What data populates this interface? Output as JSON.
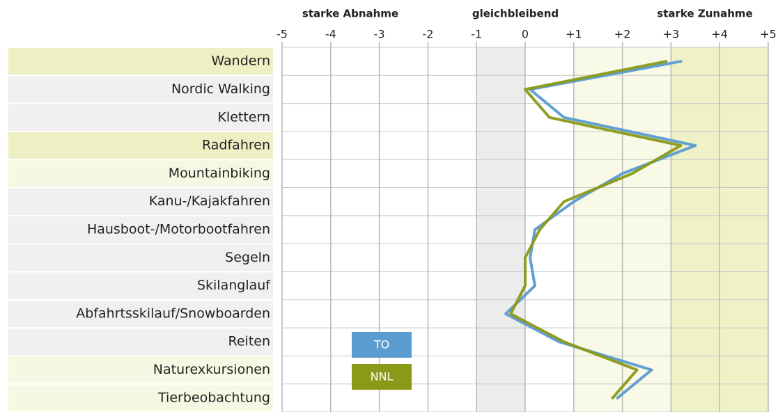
{
  "chart_data": {
    "type": "line",
    "annotations": [
      "starke Abnahme",
      "gleichbleibend",
      "starke Zunahme"
    ],
    "categories": [
      "Wandern",
      "Nordic Walking",
      "Klettern",
      "Radfahren",
      "Mountainbiking",
      "Kanu-/Kajakfahren",
      "Hausboot-/Motorbootfahren",
      "Segeln",
      "Skilanglauf",
      "Abfahrtsskilauf/Snowboarden",
      "Reiten",
      "Naturexkursionen",
      "Tierbeobachtung"
    ],
    "series": [
      {
        "name": "TO",
        "color": "#5a9bd0",
        "values": [
          3.2,
          0.1,
          0.8,
          3.5,
          2.0,
          1.0,
          0.2,
          0.1,
          0.2,
          -0.4,
          0.7,
          2.6,
          1.9
        ]
      },
      {
        "name": "NNL",
        "color": "#8a9a18",
        "values": [
          2.9,
          0.0,
          0.5,
          3.2,
          2.2,
          0.8,
          0.3,
          0.0,
          0.0,
          -0.3,
          0.8,
          2.3,
          1.8
        ]
      }
    ],
    "xlim": [
      -5,
      5
    ],
    "xticks": [
      -5,
      -4,
      -3,
      -2,
      -1,
      0,
      {
        "value": 1,
        "label": "+1"
      },
      {
        "value": 2,
        "label": "+2"
      },
      {
        "value": 3,
        "label": "+3"
      },
      {
        "value": 4,
        "label": "+4"
      },
      {
        "value": 5,
        "label": "+5"
      }
    ],
    "grid": true
  }
}
